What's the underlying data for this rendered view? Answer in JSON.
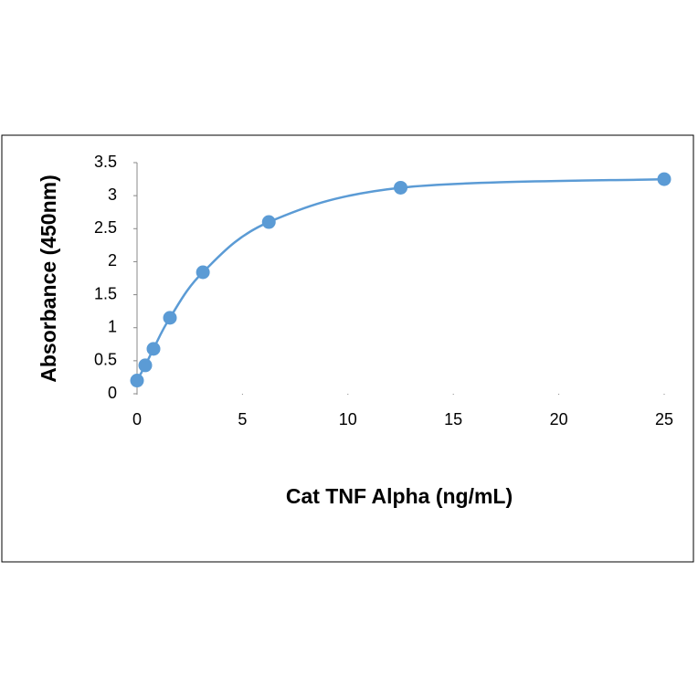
{
  "chart_data": {
    "type": "line",
    "smooth": true,
    "markers": true,
    "color": "#5b9bd5",
    "x_label": "Cat TNF Alpha (ng/mL)",
    "y_label": "Absorbance (450nm)",
    "x": [
      0,
      0.39,
      0.78,
      1.56,
      3.125,
      6.25,
      12.5,
      25
    ],
    "values": [
      0.2,
      0.43,
      0.68,
      1.15,
      1.84,
      2.6,
      3.12,
      3.25
    ],
    "xlim": [
      0,
      25
    ],
    "xticks": [
      0,
      5,
      10,
      15,
      20,
      25
    ],
    "ylim": [
      0,
      3.5
    ],
    "yticks": [
      0,
      0.5,
      1,
      1.5,
      2,
      2.5,
      3,
      3.5
    ]
  }
}
